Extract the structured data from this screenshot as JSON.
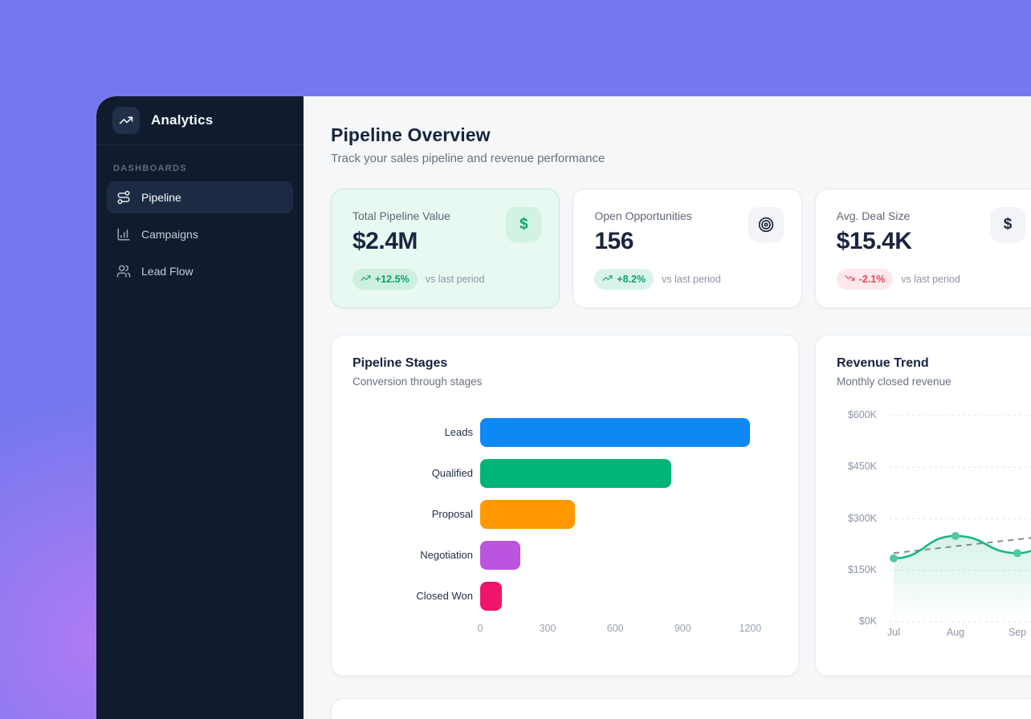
{
  "theme": {
    "background_purple": "#7478ee",
    "sidebar_bg": "#101b2e",
    "positive_green": "#12a173",
    "negative_red": "#e8445a",
    "text_dark": "#16243d"
  },
  "sidebar": {
    "logo_label": "Analytics",
    "logo_icon": "trending-up",
    "section_label": "DASHBOARDS",
    "items": [
      {
        "label": "Pipeline",
        "icon": "route",
        "active": true
      },
      {
        "label": "Campaigns",
        "icon": "chart-column",
        "active": false
      },
      {
        "label": "Lead Flow",
        "icon": "users",
        "active": false
      }
    ]
  },
  "header": {
    "title": "Pipeline Overview",
    "subtitle": "Track your sales pipeline and revenue performance"
  },
  "kpis": [
    {
      "label": "Total Pipeline Value",
      "value": "$2.4M",
      "icon": "dollar",
      "delta": "+12.5%",
      "delta_direction": "up",
      "delta_note": "vs last period",
      "highlighted": true
    },
    {
      "label": "Open Opportunities",
      "value": "156",
      "icon": "target",
      "delta": "+8.2%",
      "delta_direction": "up",
      "delta_note": "vs last period",
      "highlighted": false
    },
    {
      "label": "Avg. Deal Size",
      "value": "$15.4K",
      "icon": "dollar",
      "delta": "-2.1%",
      "delta_direction": "down",
      "delta_note": "vs last period",
      "highlighted": false
    }
  ],
  "chart_data": [
    {
      "type": "bar",
      "orientation": "horizontal",
      "title": "Pipeline Stages",
      "subtitle": "Conversion through stages",
      "categories": [
        "Leads",
        "Qualified",
        "Proposal",
        "Negotiation",
        "Closed Won"
      ],
      "values": [
        1200,
        850,
        420,
        180,
        95
      ],
      "bar_colors": [
        "#0d88f5",
        "#00b377",
        "#ff9801",
        "#bb55e0",
        "#f2136b"
      ],
      "x_ticks": [
        0,
        300,
        600,
        900,
        1200
      ],
      "xlim": [
        0,
        1320
      ],
      "grid": false
    },
    {
      "type": "line",
      "title": "Revenue Trend",
      "subtitle": "Monthly closed revenue",
      "x": [
        "Jul",
        "Aug",
        "Sep"
      ],
      "series": [
        {
          "name": "revenue",
          "values": [
            185000,
            250000,
            200000
          ],
          "color": "#14b582",
          "marker_color": "#4ecb97",
          "style": "solid",
          "markers": true,
          "area_fill": true,
          "continues_offscreen_to": 280000
        },
        {
          "name": "trend",
          "start_end_values": [
            200000,
            260000
          ],
          "color": "#6f7a87",
          "style": "dashed"
        }
      ],
      "y_tick_labels": [
        "$600K",
        "$450K",
        "$300K",
        "$150K",
        "$0K"
      ],
      "y_tick_values": [
        600000,
        450000,
        300000,
        150000,
        0
      ],
      "ylim": [
        0,
        600000
      ],
      "grid": "dashed-horizontal",
      "note": "chart clipped at right edge of screen"
    }
  ]
}
